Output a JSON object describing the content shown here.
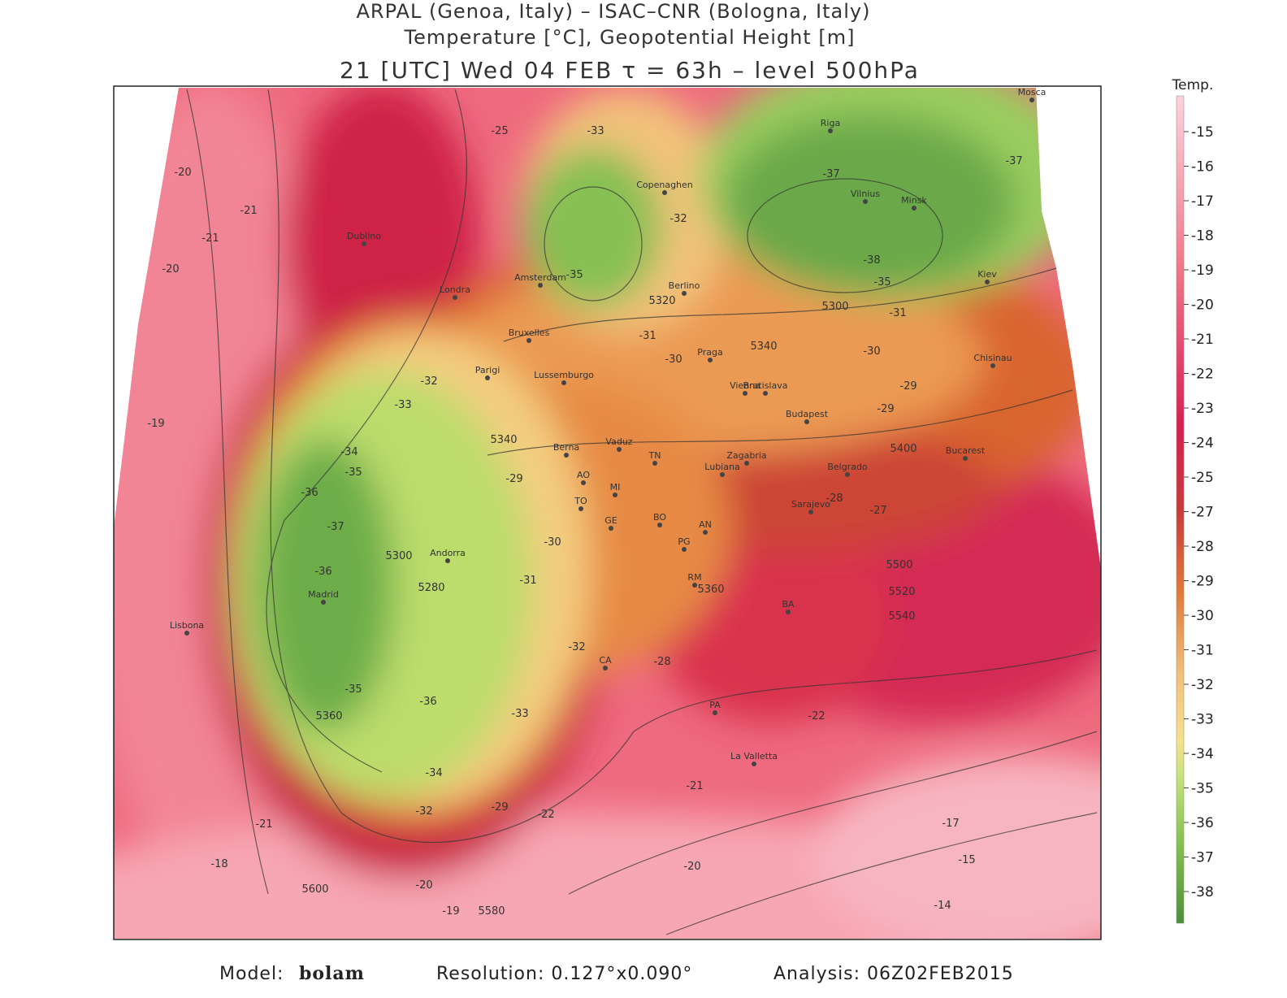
{
  "header": {
    "line1": "ARPAL (Genoa, Italy)  –  ISAC–CNR (Bologna, Italy)",
    "line2": "Temperature [°C], Geopotential Height [m]",
    "line3": "21 [UTC] Wed 04 FEB  τ = 63h  –  level 500hPa"
  },
  "colorbar": {
    "title": "Temp.",
    "ticks": [
      -15,
      -16,
      -17,
      -18,
      -19,
      -20,
      -21,
      -22,
      -23,
      -24,
      -25,
      -27,
      -28,
      -29,
      -30,
      -31,
      -32,
      -33,
      -34,
      -35,
      -36,
      -37,
      -38
    ]
  },
  "cities": [
    "Mosca",
    "Riga",
    "Vilnius",
    "Minsk",
    "Kiev",
    "Copenaghen",
    "Amsterdam",
    "Londra",
    "Dublino",
    "Berlino",
    "Bruxelles",
    "Lussemburgo",
    "Parigi",
    "Praga",
    "Vienna",
    "Bratislava",
    "Budapest",
    "Chisinau",
    "Bucarest",
    "Belgrado",
    "Zagabria",
    "Lubiana",
    "Sarajevo",
    "Vaduz",
    "Berna",
    "Andorra",
    "Madrid",
    "Lisbona",
    "La Valletta",
    "TN",
    "MI",
    "AO",
    "TO",
    "GE",
    "BO",
    "AN",
    "PG",
    "RM",
    "BA",
    "PA",
    "CA"
  ],
  "contour_labels": [
    "-20",
    "-21",
    "-21",
    "-20",
    "-19",
    "-25",
    "-33",
    "-35",
    "-32",
    "5320",
    "-31",
    "-30",
    "5340",
    "5300",
    "-31",
    "-30",
    "-37",
    "-37",
    "-38",
    "-35",
    "-29",
    "-29",
    "5400",
    "-32",
    "-33",
    "5340",
    "-29",
    "-30",
    "-31",
    "-34",
    "-35",
    "-36",
    "-37",
    "5300",
    "5280",
    "-36",
    "-35",
    "-36",
    "5360",
    "-33",
    "-32",
    "-28",
    "-34",
    "-32",
    "-29",
    "-22",
    "-21",
    "-18",
    "5600",
    "-20",
    "-19",
    "5580",
    "-21",
    "-20",
    "-22",
    "-17",
    "-15",
    "-14",
    "-27",
    "-28",
    "5500",
    "5520",
    "5540",
    "5360"
  ],
  "footer": {
    "model_label": "Model:",
    "model": "bolam",
    "resolution": "Resolution: 0.127°x0.090°",
    "analysis": "Analysis: 06Z02FEB2015"
  }
}
